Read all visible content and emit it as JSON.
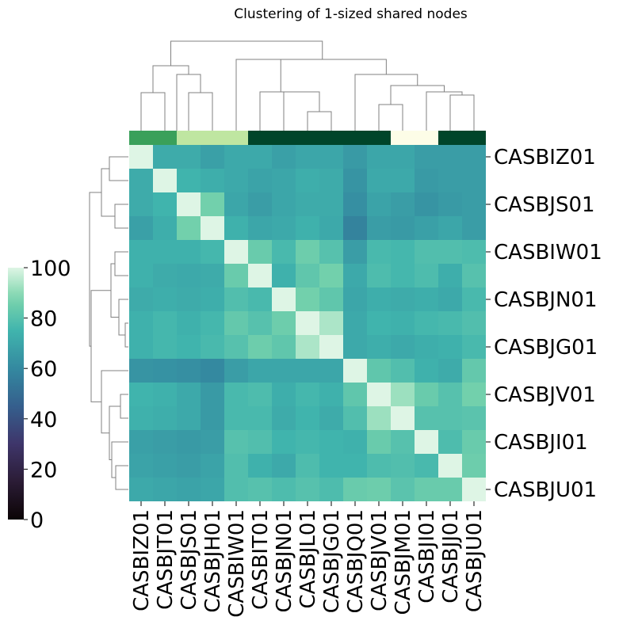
{
  "chart_data": {
    "type": "heatmap",
    "title": "Clustering of 1-sized shared nodes",
    "colormap": "mako",
    "clim": [
      0,
      100
    ],
    "colorbar_ticks": [
      "0",
      "20",
      "40",
      "60",
      "80",
      "100"
    ],
    "colorbar_ticks_values": [
      0,
      20,
      40,
      60,
      80,
      100
    ],
    "x_tick_labels": [
      "CASBIZ01",
      "CASBJT01",
      "CASBJS01",
      "CASBJH01",
      "CASBIW01",
      "CASBIT01",
      "CASBJN01",
      "CASBJL01",
      "CASBJG01",
      "CASBJQ01",
      "CASBJV01",
      "CASBJM01",
      "CASBJI01",
      "CASBJJ01",
      "CASBJU01"
    ],
    "y_tick_labels": [
      "CASBIZ01",
      "CASBJS01",
      "CASBIW01",
      "CASBJN01",
      "CASBJG01",
      "CASBJV01",
      "CASBJI01",
      "CASBJU01"
    ],
    "y_tick_rows": [
      0,
      2,
      4,
      6,
      8,
      10,
      12,
      14
    ],
    "row_order": [
      "CASBIZ01",
      "CASBJT01",
      "CASBJS01",
      "CASBJH01",
      "CASBIW01",
      "CASBIT01",
      "CASBJN01",
      "CASBJL01",
      "CASBJG01",
      "CASBJQ01",
      "CASBJV01",
      "CASBJM01",
      "CASBJI01",
      "CASBJJ01",
      "CASBJU01"
    ],
    "values": [
      [
        100,
        72,
        72,
        68,
        71,
        71,
        68,
        70,
        70,
        66,
        70,
        70,
        67,
        67,
        67
      ],
      [
        72,
        100,
        75,
        73,
        71,
        69,
        70,
        73,
        72,
        64,
        71,
        71,
        66,
        67,
        67
      ],
      [
        72,
        75,
        100,
        86,
        70,
        67,
        70,
        72,
        72,
        62,
        69,
        67,
        64,
        66,
        67
      ],
      [
        68,
        73,
        86,
        100,
        74,
        70,
        71,
        74,
        71,
        58,
        67,
        66,
        68,
        70,
        67
      ],
      [
        74,
        74,
        74,
        76,
        100,
        84,
        77,
        85,
        80,
        67,
        77,
        76,
        79,
        79,
        78
      ],
      [
        74,
        72,
        71,
        72,
        84,
        100,
        74,
        82,
        86,
        71,
        78,
        76,
        78,
        73,
        80
      ],
      [
        72,
        73,
        72,
        73,
        79,
        77,
        100,
        86,
        82,
        70,
        73,
        72,
        73,
        71,
        77
      ],
      [
        74,
        76,
        74,
        76,
        83,
        80,
        85,
        100,
        94,
        71,
        75,
        74,
        76,
        77,
        79
      ],
      [
        74,
        76,
        75,
        77,
        80,
        85,
        82,
        94,
        100,
        71,
        73,
        71,
        73,
        74,
        77
      ],
      [
        64,
        63,
        62,
        60,
        67,
        70,
        70,
        70,
        70,
        100,
        82,
        79,
        74,
        72,
        83
      ],
      [
        75,
        74,
        71,
        66,
        77,
        78,
        73,
        76,
        74,
        82,
        100,
        92,
        84,
        80,
        86
      ],
      [
        74,
        73,
        71,
        66,
        77,
        77,
        72,
        75,
        72,
        79,
        92,
        100,
        80,
        80,
        81
      ],
      [
        68,
        67,
        66,
        67,
        80,
        79,
        75,
        76,
        75,
        74,
        84,
        80,
        100,
        78,
        84
      ],
      [
        69,
        68,
        67,
        69,
        79,
        74,
        71,
        78,
        75,
        75,
        78,
        79,
        77,
        100,
        85
      ],
      [
        71,
        70,
        69,
        70,
        79,
        80,
        78,
        80,
        78,
        84,
        85,
        81,
        84,
        84,
        100
      ]
    ],
    "column_colors": [
      "#3aa05a",
      "#3aa05a",
      "#bfe6a1",
      "#bfe6a1",
      "#bfe6a1",
      "#00452a",
      "#00452a",
      "#00452a",
      "#00452a",
      "#00452a",
      "#00452a",
      "#fdfde7",
      "#fdfde7",
      "#00452a",
      "#00452a"
    ],
    "dendrogram_color": "#808080"
  }
}
